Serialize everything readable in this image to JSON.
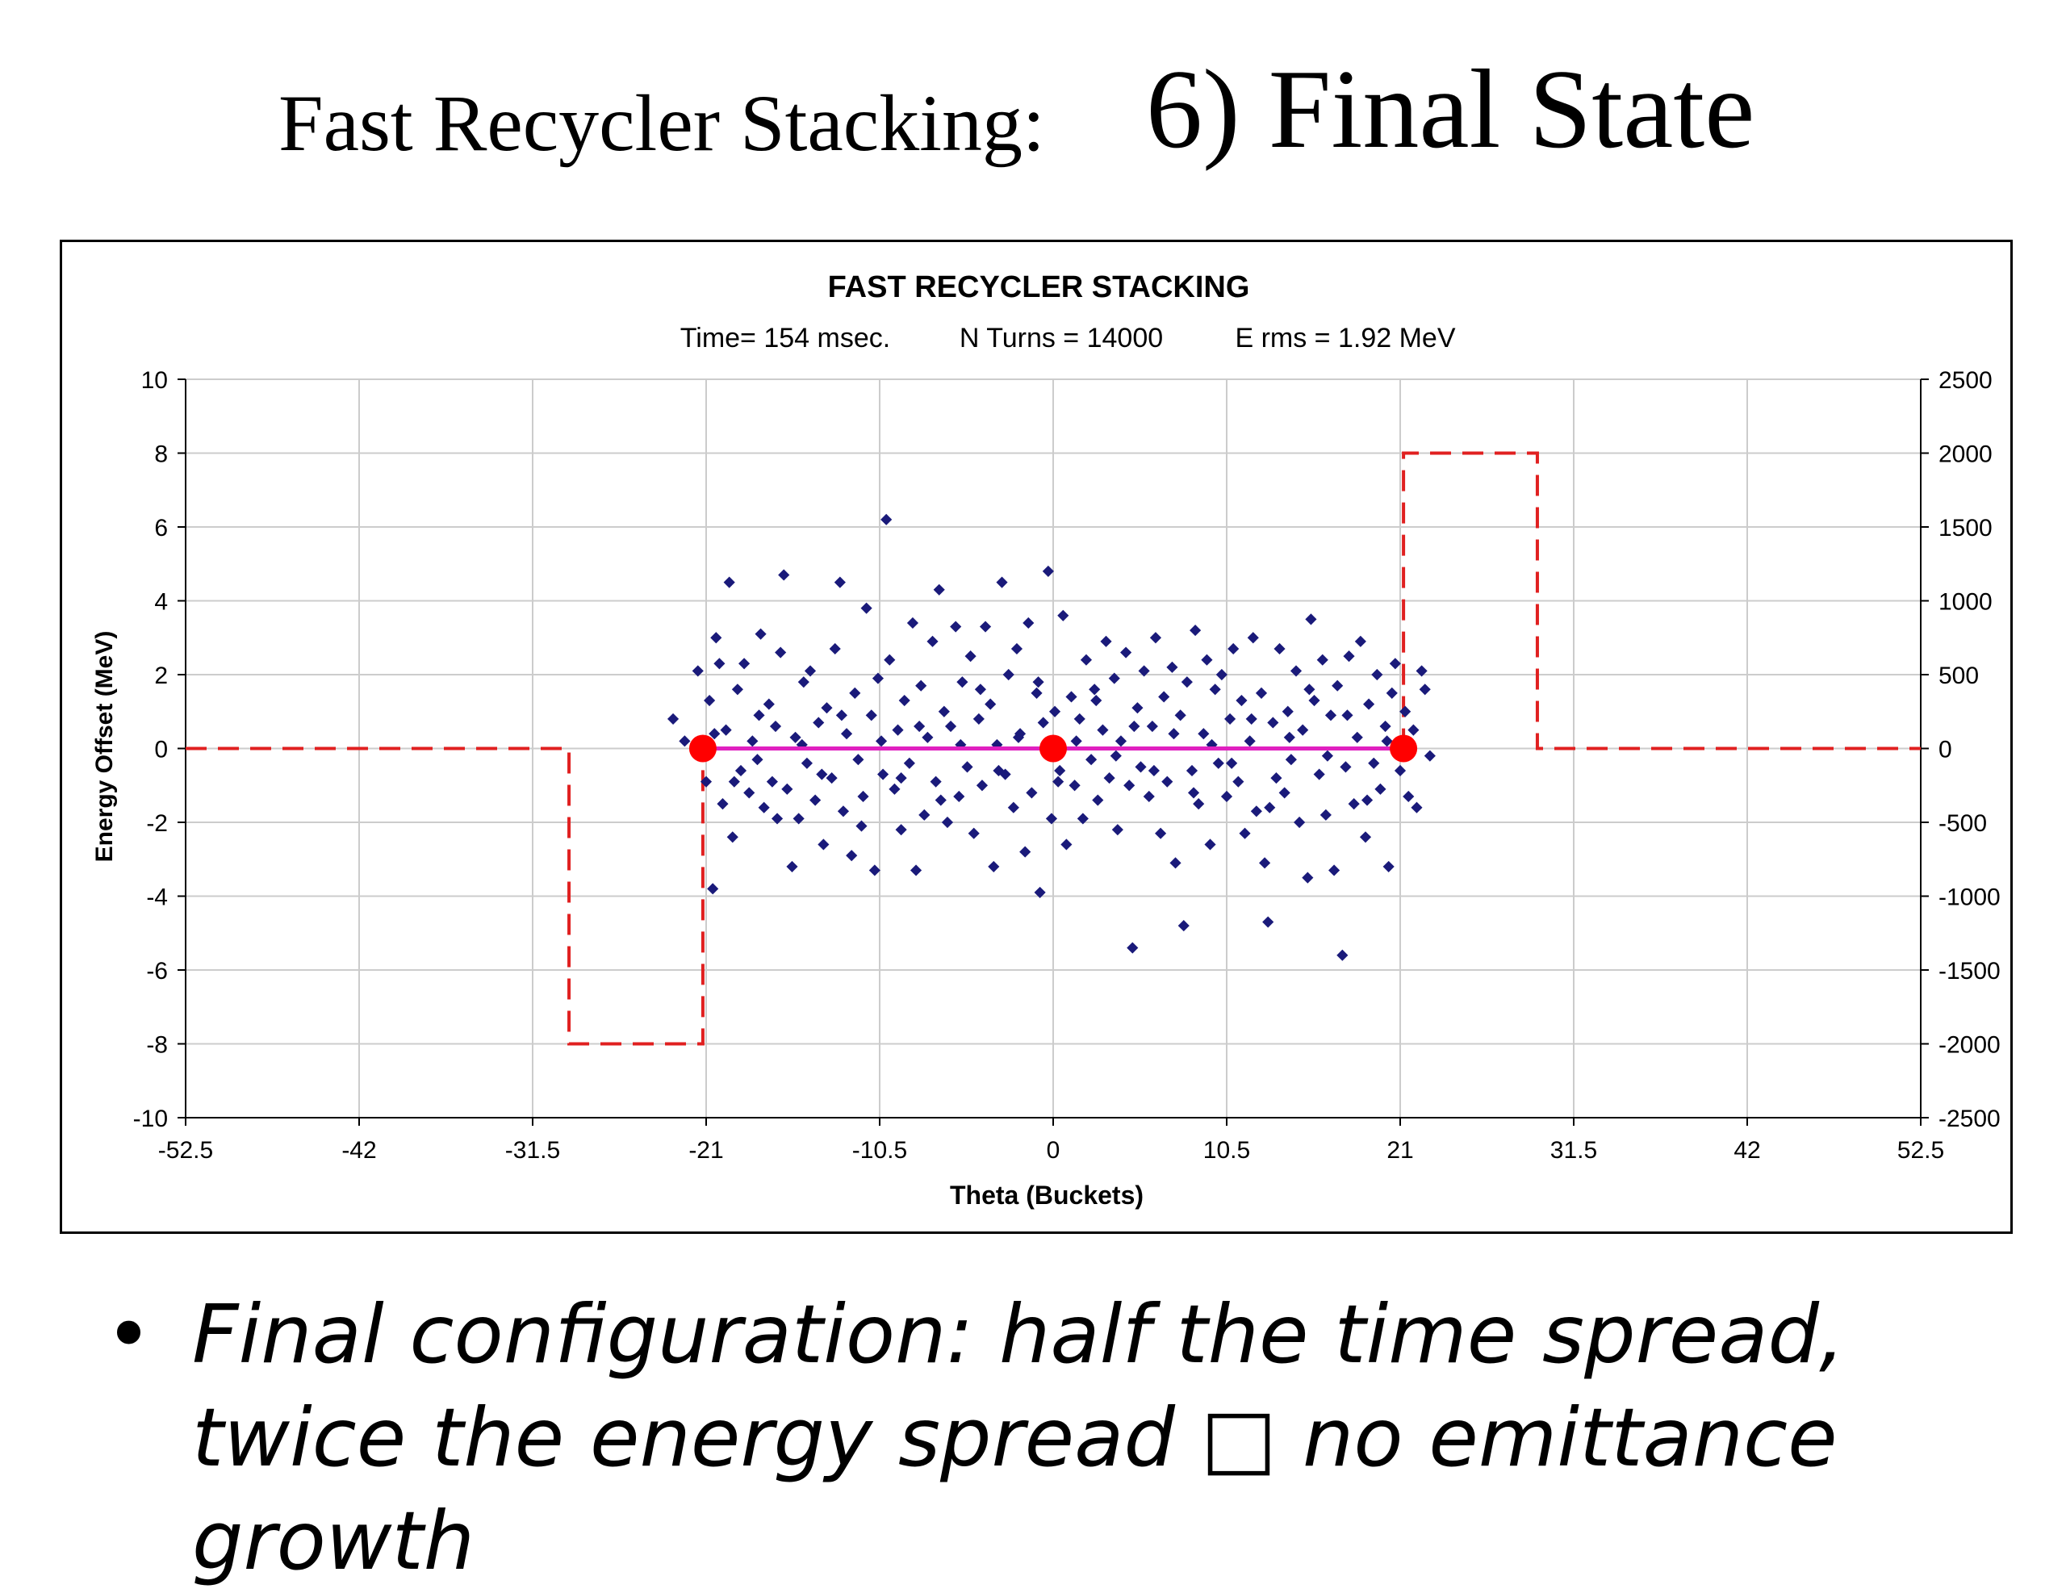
{
  "slide": {
    "title_left": "Fast Recycler Stacking:",
    "title_right": "6)  Final State",
    "bullet_symbol": "•",
    "bullet_text": "Final configuration:  half the time spread, twice the energy spread □ no emittance growth"
  },
  "chart_data": {
    "type": "scatter",
    "title": "FAST RECYCLER STACKING",
    "subtitle": {
      "time": "Time= 154 msec.",
      "turns": "N Turns = 14000",
      "erms": "E rms = 1.92 MeV"
    },
    "xlabel": "Theta (Buckets)",
    "ylabel": "Energy Offset (MeV)",
    "xlim": [
      -52.5,
      52.5
    ],
    "ylim": [
      -10,
      10
    ],
    "y2lim": [
      -2500,
      2500
    ],
    "x_ticks": [
      "-52.5",
      "-42",
      "-31.5",
      "-21",
      "-10.5",
      "0",
      "10.5",
      "21",
      "31.5",
      "42",
      "52.5"
    ],
    "y_ticks": [
      "10",
      "8",
      "6",
      "4",
      "2",
      "0",
      "-2",
      "-4",
      "-6",
      "-8",
      "-10"
    ],
    "y2_ticks": [
      "2500",
      "2000",
      "1500",
      "1000",
      "500",
      "0",
      "-500",
      "-1000",
      "-1500",
      "-2000",
      "-2500"
    ],
    "grid": true,
    "colors": {
      "particles": "#1a1a7a",
      "voltage": "#e02020",
      "markers": "#ff0000",
      "line": "#e020c0"
    },
    "series": [
      {
        "type": "step-line",
        "axis": "y2",
        "style": "dashed",
        "x": [
          -52.5,
          -29.3,
          -29.3,
          -21.2,
          -21.2,
          21.2,
          21.2,
          29.3,
          29.3,
          52.5
        ],
        "y": [
          0,
          0,
          -2000,
          -2000,
          0,
          0,
          2000,
          2000,
          0,
          0
        ]
      },
      {
        "type": "line",
        "x": [
          -21.2,
          21.2
        ],
        "y": [
          0,
          0
        ]
      },
      {
        "type": "markers",
        "x": [
          -21.2,
          0,
          21.2
        ],
        "y": [
          0,
          0,
          0
        ]
      },
      {
        "type": "scatter",
        "points": [
          [
            -23.0,
            0.8
          ],
          [
            -22.3,
            0.2
          ],
          [
            -21.5,
            2.1
          ],
          [
            -21.0,
            -0.9
          ],
          [
            -20.8,
            1.3
          ],
          [
            -20.6,
            -3.8
          ],
          [
            -20.4,
            3.0
          ],
          [
            -20.2,
            2.3
          ],
          [
            -20.0,
            -1.5
          ],
          [
            -19.8,
            0.5
          ],
          [
            -19.6,
            4.5
          ],
          [
            -19.4,
            -2.4
          ],
          [
            -19.1,
            1.6
          ],
          [
            -18.9,
            -0.6
          ],
          [
            -18.7,
            2.3
          ],
          [
            -18.4,
            -1.2
          ],
          [
            -18.2,
            0.2
          ],
          [
            -17.9,
            -0.3
          ],
          [
            -17.7,
            3.1
          ],
          [
            -17.5,
            -1.6
          ],
          [
            -17.2,
            1.2
          ],
          [
            -17.0,
            -0.9
          ],
          [
            -16.8,
            0.6
          ],
          [
            -16.5,
            2.6
          ],
          [
            -16.3,
            4.7
          ],
          [
            -16.1,
            -1.1
          ],
          [
            -15.8,
            -3.2
          ],
          [
            -15.6,
            0.3
          ],
          [
            -15.4,
            -1.9
          ],
          [
            -15.1,
            1.8
          ],
          [
            -14.9,
            -0.4
          ],
          [
            -14.7,
            2.1
          ],
          [
            -14.4,
            -1.4
          ],
          [
            -14.2,
            0.7
          ],
          [
            -13.9,
            -2.6
          ],
          [
            -13.7,
            1.1
          ],
          [
            -13.4,
            -0.8
          ],
          [
            -13.2,
            2.7
          ],
          [
            -12.9,
            4.5
          ],
          [
            -12.7,
            -1.7
          ],
          [
            -12.5,
            0.4
          ],
          [
            -12.2,
            -2.9
          ],
          [
            -12.0,
            1.5
          ],
          [
            -11.8,
            -0.3
          ],
          [
            -11.5,
            -1.3
          ],
          [
            -11.3,
            3.8
          ],
          [
            -11.0,
            0.9
          ],
          [
            -10.8,
            -3.3
          ],
          [
            -10.6,
            1.9
          ],
          [
            -10.3,
            -0.7
          ],
          [
            -10.1,
            6.2
          ],
          [
            -9.9,
            2.4
          ],
          [
            -9.6,
            -1.1
          ],
          [
            -9.4,
            0.5
          ],
          [
            -9.2,
            -2.2
          ],
          [
            -9.0,
            1.3
          ],
          [
            -8.7,
            -0.4
          ],
          [
            -8.5,
            3.4
          ],
          [
            -8.3,
            -3.3
          ],
          [
            -8.0,
            1.7
          ],
          [
            -7.8,
            -1.8
          ],
          [
            -7.6,
            0.3
          ],
          [
            -7.3,
            2.9
          ],
          [
            -7.1,
            -0.9
          ],
          [
            -6.9,
            4.3
          ],
          [
            -6.6,
            1.0
          ],
          [
            -6.4,
            -2.0
          ],
          [
            -6.2,
            0.6
          ],
          [
            -5.9,
            3.3
          ],
          [
            -5.7,
            -1.3
          ],
          [
            -5.5,
            1.8
          ],
          [
            -5.2,
            -0.5
          ],
          [
            -5.0,
            2.5
          ],
          [
            -4.8,
            -2.3
          ],
          [
            -4.5,
            0.8
          ],
          [
            -4.3,
            -1.0
          ],
          [
            -4.1,
            3.3
          ],
          [
            -3.8,
            1.2
          ],
          [
            -3.6,
            -3.2
          ],
          [
            -3.4,
            0.1
          ],
          [
            -3.1,
            4.5
          ],
          [
            -2.9,
            -0.7
          ],
          [
            -2.7,
            2.0
          ],
          [
            -2.4,
            -1.6
          ],
          [
            -2.2,
            2.7
          ],
          [
            -2.0,
            0.4
          ],
          [
            -1.7,
            -2.8
          ],
          [
            -1.5,
            3.4
          ],
          [
            -1.3,
            -1.2
          ],
          [
            -1.0,
            1.5
          ],
          [
            -0.8,
            -3.9
          ],
          [
            -0.6,
            0.7
          ],
          [
            -0.3,
            4.8
          ],
          [
            -0.1,
            -1.9
          ],
          [
            0.1,
            1.0
          ],
          [
            0.4,
            -0.6
          ],
          [
            0.6,
            3.6
          ],
          [
            0.8,
            -2.6
          ],
          [
            1.1,
            1.4
          ],
          [
            1.3,
            -1.0
          ],
          [
            1.6,
            0.8
          ],
          [
            1.8,
            -1.9
          ],
          [
            2.0,
            2.4
          ],
          [
            2.3,
            -0.3
          ],
          [
            2.5,
            1.6
          ],
          [
            2.7,
            -1.4
          ],
          [
            3.0,
            0.5
          ],
          [
            3.2,
            2.9
          ],
          [
            3.4,
            -0.8
          ],
          [
            3.7,
            1.9
          ],
          [
            3.9,
            -2.2
          ],
          [
            4.1,
            0.2
          ],
          [
            4.4,
            2.6
          ],
          [
            4.6,
            -1.0
          ],
          [
            4.8,
            -5.4
          ],
          [
            5.1,
            1.1
          ],
          [
            5.3,
            -0.5
          ],
          [
            5.5,
            2.1
          ],
          [
            5.8,
            -1.3
          ],
          [
            6.0,
            0.6
          ],
          [
            6.2,
            3.0
          ],
          [
            6.5,
            -2.3
          ],
          [
            6.7,
            1.4
          ],
          [
            6.9,
            -0.9
          ],
          [
            7.2,
            2.2
          ],
          [
            7.4,
            -3.1
          ],
          [
            7.7,
            0.9
          ],
          [
            7.9,
            -4.8
          ],
          [
            8.1,
            1.8
          ],
          [
            8.4,
            -0.6
          ],
          [
            8.6,
            3.2
          ],
          [
            8.8,
            -1.5
          ],
          [
            9.1,
            0.4
          ],
          [
            9.3,
            2.4
          ],
          [
            9.5,
            -2.6
          ],
          [
            9.8,
            1.6
          ],
          [
            10.0,
            -0.4
          ],
          [
            10.2,
            2.0
          ],
          [
            10.5,
            -1.3
          ],
          [
            10.7,
            0.8
          ],
          [
            10.9,
            2.7
          ],
          [
            11.2,
            -0.9
          ],
          [
            11.4,
            1.3
          ],
          [
            11.6,
            -2.3
          ],
          [
            11.9,
            0.2
          ],
          [
            12.1,
            3.0
          ],
          [
            12.3,
            -1.7
          ],
          [
            12.6,
            1.5
          ],
          [
            12.8,
            -3.1
          ],
          [
            13.0,
            -4.7
          ],
          [
            13.3,
            0.7
          ],
          [
            13.5,
            -0.8
          ],
          [
            13.7,
            2.7
          ],
          [
            14.0,
            -1.2
          ],
          [
            14.2,
            1.0
          ],
          [
            14.4,
            -0.3
          ],
          [
            14.7,
            2.1
          ],
          [
            14.9,
            -2.0
          ],
          [
            15.1,
            0.5
          ],
          [
            15.4,
            -3.5
          ],
          [
            15.6,
            3.5
          ],
          [
            15.8,
            1.3
          ],
          [
            16.1,
            -0.7
          ],
          [
            16.3,
            2.4
          ],
          [
            16.5,
            -1.8
          ],
          [
            16.8,
            0.9
          ],
          [
            17.0,
            -3.3
          ],
          [
            17.2,
            1.7
          ],
          [
            17.5,
            -5.6
          ],
          [
            17.7,
            -0.5
          ],
          [
            17.9,
            2.5
          ],
          [
            18.2,
            -1.5
          ],
          [
            18.4,
            0.3
          ],
          [
            18.6,
            2.9
          ],
          [
            18.9,
            -2.4
          ],
          [
            19.1,
            1.2
          ],
          [
            19.4,
            -0.4
          ],
          [
            19.6,
            2.0
          ],
          [
            19.8,
            -1.1
          ],
          [
            20.1,
            0.6
          ],
          [
            20.3,
            -3.2
          ],
          [
            20.5,
            1.5
          ],
          [
            20.7,
            2.3
          ],
          [
            21.0,
            -0.6
          ],
          [
            21.3,
            1.0
          ],
          [
            21.5,
            -1.3
          ],
          [
            21.8,
            0.5
          ],
          [
            22.0,
            -1.6
          ],
          [
            22.3,
            2.1
          ],
          [
            22.5,
            1.6
          ],
          [
            22.8,
            -0.2
          ],
          [
            -20.5,
            0.4
          ],
          [
            -19.3,
            -0.9
          ],
          [
            -17.8,
            0.9
          ],
          [
            -16.7,
            -1.9
          ],
          [
            -15.2,
            0.1
          ],
          [
            -14.0,
            -0.7
          ],
          [
            -12.8,
            0.9
          ],
          [
            -11.6,
            -2.1
          ],
          [
            -10.4,
            0.2
          ],
          [
            -9.2,
            -0.8
          ],
          [
            -8.1,
            0.6
          ],
          [
            -6.8,
            -1.4
          ],
          [
            -5.6,
            0.1
          ],
          [
            -4.4,
            1.6
          ],
          [
            -3.3,
            -0.6
          ],
          [
            -2.1,
            0.3
          ],
          [
            -0.9,
            1.8
          ],
          [
            0.3,
            -0.9
          ],
          [
            1.4,
            0.2
          ],
          [
            2.6,
            1.3
          ],
          [
            3.8,
            -0.2
          ],
          [
            4.9,
            0.6
          ],
          [
            6.1,
            -0.6
          ],
          [
            7.3,
            0.4
          ],
          [
            8.5,
            -1.2
          ],
          [
            9.6,
            0.1
          ],
          [
            10.8,
            -0.4
          ],
          [
            12.0,
            0.8
          ],
          [
            13.1,
            -1.6
          ],
          [
            14.3,
            0.3
          ],
          [
            15.5,
            1.6
          ],
          [
            16.6,
            -0.2
          ],
          [
            17.8,
            0.9
          ],
          [
            19.0,
            -1.4
          ],
          [
            20.2,
            0.2
          ]
        ]
      }
    ]
  }
}
